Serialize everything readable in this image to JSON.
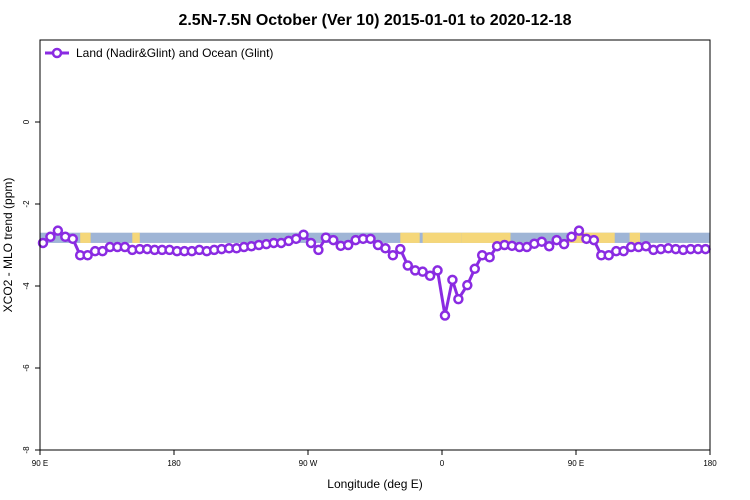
{
  "chart_data": {
    "type": "line",
    "title": "2.5N-7.5N October (Ver 10)   2015-01-01 to 2020-12-18",
    "xlabel": "Longitude (deg E)",
    "ylabel": "XCO2 - MLO trend (ppm)",
    "x_tick_labels": [
      "90 E",
      "180",
      "90 W",
      "0",
      "90 E",
      "180"
    ],
    "x_tick_values": [
      90,
      180,
      270,
      360,
      450,
      540
    ],
    "y_tick_labels": [
      "-8",
      "-6",
      "-4",
      "-2",
      "0"
    ],
    "y_tick_values": [
      -8,
      -6,
      -4,
      -2,
      0
    ],
    "xlim": [
      90,
      540
    ],
    "ylim": [
      -8,
      2
    ],
    "grid": false,
    "legend_position": "top-left",
    "land_mask_band": {
      "ocean_color": "#9fb5d6",
      "land_color": "#f5d77a",
      "y_range": [
        -2.95,
        -2.7
      ],
      "land_spans": [
        [
          117,
          124
        ],
        [
          152,
          157
        ],
        [
          332,
          345
        ],
        [
          347,
          373
        ],
        [
          373,
          406
        ],
        [
          445,
          476
        ],
        [
          486,
          493
        ]
      ]
    },
    "series": [
      {
        "name": "Land (Nadir&Glint) and Ocean (Glint)",
        "color": "#8a2be2",
        "x": [
          92,
          97,
          102,
          107,
          112,
          117,
          122,
          127,
          132,
          137,
          142,
          147,
          152,
          157,
          162,
          167,
          172,
          177,
          182,
          187,
          192,
          197,
          202,
          207,
          212,
          217,
          222,
          227,
          232,
          237,
          242,
          247,
          252,
          257,
          262,
          267,
          272,
          277,
          282,
          287,
          292,
          297,
          302,
          307,
          312,
          317,
          322,
          327,
          332,
          337,
          342,
          347,
          352,
          357,
          362,
          367,
          371,
          377,
          382,
          387,
          392,
          397,
          402,
          407,
          412,
          417,
          422,
          427,
          432,
          437,
          442,
          447,
          452,
          457,
          462,
          467,
          472,
          477,
          482,
          487,
          492,
          497,
          502,
          507,
          512,
          517,
          522,
          527,
          532,
          537
        ],
        "y": [
          -2.95,
          -2.8,
          -2.65,
          -2.8,
          -2.85,
          -3.25,
          -3.25,
          -3.15,
          -3.15,
          -3.05,
          -3.05,
          -3.05,
          -3.12,
          -3.1,
          -3.1,
          -3.12,
          -3.12,
          -3.12,
          -3.15,
          -3.15,
          -3.15,
          -3.12,
          -3.15,
          -3.12,
          -3.1,
          -3.08,
          -3.08,
          -3.05,
          -3.03,
          -3.0,
          -2.98,
          -2.95,
          -2.95,
          -2.9,
          -2.85,
          -2.75,
          -2.95,
          -3.12,
          -2.82,
          -2.88,
          -3.02,
          -3.0,
          -2.88,
          -2.85,
          -2.85,
          -3.0,
          -3.08,
          -3.25,
          -3.1,
          -3.5,
          -3.62,
          -3.65,
          -3.75,
          -3.62,
          -4.72,
          -3.85,
          -4.32,
          -3.98,
          -3.58,
          -3.25,
          -3.3,
          -3.03,
          -3.0,
          -3.02,
          -3.05,
          -3.05,
          -2.97,
          -2.92,
          -3.03,
          -2.88,
          -2.98,
          -2.8,
          -2.65,
          -2.85,
          -2.88,
          -3.25,
          -3.25,
          -3.15,
          -3.15,
          -3.05,
          -3.05,
          -3.03,
          -3.12,
          -3.1,
          -3.08,
          -3.1,
          -3.12,
          -3.1,
          -3.1,
          -3.1
        ]
      }
    ]
  }
}
